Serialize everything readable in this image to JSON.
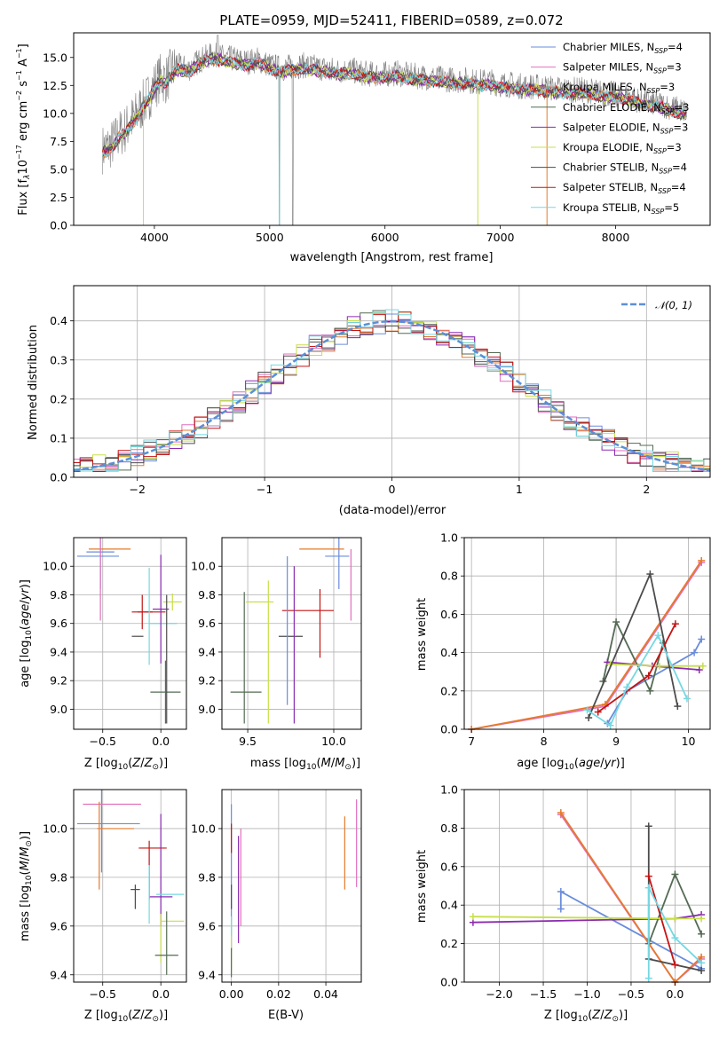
{
  "chart_data": [
    {
      "id": "spectrum",
      "type": "line",
      "title": "PLATE=0959, MJD=52411, FIBERID=0589, z=0.072",
      "xlabel": "wavelength [Angstrom, rest frame]",
      "ylabel": "Flux [f_λ10^-17 erg cm^-2 s^-1 A^-1]",
      "xlim": [
        3300,
        8820
      ],
      "ylim": [
        0,
        17.2
      ],
      "xticks": [
        4000,
        5000,
        6000,
        7000,
        8000
      ],
      "yticks": [
        0.0,
        2.5,
        5.0,
        7.5,
        10.0,
        12.5,
        15.0
      ],
      "grid": false,
      "legend_position": "top-right",
      "data_curve": {
        "x": [
          3550,
          3600,
          3650,
          3700,
          3750,
          3800,
          3850,
          3900,
          3950,
          4000,
          4050,
          4100,
          4150,
          4200,
          4300,
          4400,
          4500,
          4600,
          4700,
          4800,
          4900,
          5000,
          5100,
          5200,
          5300,
          5400,
          5500,
          5600,
          5700,
          5800,
          5900,
          6000,
          6100,
          6200,
          6300,
          6400,
          6500,
          6600,
          6700,
          6800,
          6900,
          7000,
          7100,
          7200,
          7300,
          7400,
          7500,
          7600,
          7700,
          7800,
          7900,
          8000,
          8100,
          8200,
          8300,
          8400,
          8500,
          8600
        ],
        "y": [
          6.8,
          7.0,
          7.5,
          8.2,
          8.6,
          9.3,
          10.0,
          10.8,
          11.5,
          12.5,
          13.2,
          13.0,
          13.8,
          14.2,
          14.0,
          14.8,
          15.2,
          15.0,
          14.8,
          14.6,
          14.8,
          14.3,
          14.0,
          14.2,
          14.3,
          14.1,
          14.0,
          13.8,
          13.9,
          13.6,
          13.5,
          13.5,
          13.6,
          13.4,
          13.3,
          13.2,
          13.1,
          13.0,
          13.0,
          12.8,
          12.9,
          12.6,
          12.6,
          12.4,
          12.4,
          12.3,
          12.2,
          12.1,
          12.1,
          12.0,
          11.8,
          11.7,
          11.6,
          11.2,
          11.0,
          10.8,
          10.5,
          10.2
        ]
      },
      "series": [
        {
          "name": "Chabrier MILES, N_SSP=4",
          "color": "#6a8cdc"
        },
        {
          "name": "Salpeter MILES, N_SSP=3",
          "color": "#e26fbd"
        },
        {
          "name": "Kroupa MILES, N_SSP=3",
          "color": "#e57a2c"
        },
        {
          "name": "Chabrier ELODIE, N_SSP=3",
          "color": "#546b54"
        },
        {
          "name": "Salpeter ELODIE, N_SSP=3",
          "color": "#8a2bb0"
        },
        {
          "name": "Kroupa ELODIE, N_SSP=3",
          "color": "#c8df4a"
        },
        {
          "name": "Chabrier STELIB, N_SSP=4",
          "color": "#4c4c4c"
        },
        {
          "name": "Salpeter STELIB, N_SSP=4",
          "color": "#c41414"
        },
        {
          "name": "Kroupa STELIB, N_SSP=5",
          "color": "#75d8e2"
        }
      ]
    },
    {
      "id": "residuals",
      "type": "line",
      "title": "",
      "xlabel": "(data-model)/error",
      "ylabel": "Normed distribution",
      "xlim": [
        -2.5,
        2.5
      ],
      "ylim": [
        0,
        0.49
      ],
      "xticks": [
        -2,
        -1,
        0,
        1,
        2
      ],
      "yticks": [
        0.0,
        0.1,
        0.2,
        0.3,
        0.4
      ],
      "grid": true,
      "legend_position": "top-right",
      "reference": {
        "name": "𝒩(0,1)",
        "color": "#5b8fd6"
      }
    },
    {
      "id": "age-vs-Z",
      "type": "scatter",
      "xlabel": "Z [log10(Z/Z⊙)]",
      "ylabel": "age  [log10(age/yr)]",
      "xlim": [
        -0.75,
        0.22
      ],
      "ylim": [
        8.86,
        10.2
      ],
      "xticks": [
        -0.5,
        0.0
      ],
      "yticks": [
        9.0,
        9.2,
        9.4,
        9.6,
        9.8,
        10.0
      ],
      "grid": true,
      "points": [
        {
          "x": -0.54,
          "y": 10.07,
          "xerr": 0.18,
          "yerr": 0.0,
          "color": "#6a8cdc"
        },
        {
          "x": -0.52,
          "y": 10.1,
          "xerr": 0.12,
          "yerr": 0.26,
          "color": "#6a8cdc"
        },
        {
          "x": -0.44,
          "y": 10.12,
          "xerr": 0.18,
          "yerr": 0.0,
          "color": "#e57a2c"
        },
        {
          "x": -0.52,
          "y": 10.08,
          "xerr": 0.0,
          "yerr": 0.46,
          "color": "#e26fbd"
        },
        {
          "x": -0.16,
          "y": 9.68,
          "xerr": 0.09,
          "yerr": 0.12,
          "color": "#c41414"
        },
        {
          "x": -0.08,
          "y": 9.68,
          "xerr": 0.12,
          "yerr": 0.0,
          "color": "#c41414"
        },
        {
          "x": -0.2,
          "y": 9.51,
          "xerr": 0.05,
          "yerr": 0.0,
          "color": "#4c4c4c"
        },
        {
          "x": -0.1,
          "y": 9.65,
          "xerr": 0.0,
          "yerr": 0.34,
          "color": "#75d8e2"
        },
        {
          "x": 0.02,
          "y": 9.6,
          "xerr": 0.12,
          "yerr": 0.0,
          "color": "#75d8e2"
        },
        {
          "x": 0.0,
          "y": 9.7,
          "xerr": 0.07,
          "yerr": 0.38,
          "color": "#8a2bb0"
        },
        {
          "x": 0.04,
          "y": 9.12,
          "xerr": 0.13,
          "yerr": 0.22,
          "color": "#546b54"
        },
        {
          "x": 0.1,
          "y": 9.75,
          "xerr": 0.08,
          "yerr": 0.06,
          "color": "#c8df4a"
        },
        {
          "x": 0.05,
          "y": 9.35,
          "xerr": 0.0,
          "yerr": 0.45,
          "color": "#4c4c4c"
        }
      ]
    },
    {
      "id": "age-vs-mass",
      "type": "scatter",
      "xlabel": "mass [log10(M/M⊙)]",
      "ylabel": "",
      "xlim": [
        9.35,
        10.16
      ],
      "ylim": [
        8.86,
        10.2
      ],
      "xticks": [
        9.5,
        10.0
      ],
      "yticks": [
        9.0,
        9.2,
        9.4,
        9.6,
        9.8,
        10.0
      ],
      "grid": true,
      "points": [
        {
          "x": 10.02,
          "y": 10.07,
          "xerr": 0.07,
          "yerr": 0.0,
          "color": "#6a8cdc"
        },
        {
          "x": 10.03,
          "y": 10.1,
          "xerr": 0.0,
          "yerr": 0.26,
          "color": "#6a8cdc"
        },
        {
          "x": 9.93,
          "y": 10.12,
          "xerr": 0.13,
          "yerr": 0.0,
          "color": "#e57a2c"
        },
        {
          "x": 10.1,
          "y": 9.87,
          "xerr": 0.0,
          "yerr": 0.25,
          "color": "#e26fbd"
        },
        {
          "x": 9.85,
          "y": 9.69,
          "xerr": 0.15,
          "yerr": 0.0,
          "color": "#c41414"
        },
        {
          "x": 9.92,
          "y": 9.6,
          "xerr": 0.0,
          "yerr": 0.24,
          "color": "#c41414"
        },
        {
          "x": 9.75,
          "y": 9.51,
          "xerr": 0.07,
          "yerr": 0.0,
          "color": "#4c4c4c"
        },
        {
          "x": 9.73,
          "y": 9.55,
          "xerr": 0.0,
          "yerr": 0.52,
          "color": "#6a8cdc"
        },
        {
          "x": 9.77,
          "y": 9.45,
          "xerr": 0.0,
          "yerr": 0.55,
          "color": "#8a2bb0"
        },
        {
          "x": 9.57,
          "y": 9.75,
          "xerr": 0.08,
          "yerr": 0.0,
          "color": "#c8df4a"
        },
        {
          "x": 9.62,
          "y": 9.4,
          "xerr": 0.0,
          "yerr": 0.5,
          "color": "#c8df4a"
        },
        {
          "x": 9.49,
          "y": 9.12,
          "xerr": 0.09,
          "yerr": 0.0,
          "color": "#546b54"
        },
        {
          "x": 9.48,
          "y": 9.36,
          "xerr": 0.0,
          "yerr": 0.46,
          "color": "#546b54"
        }
      ]
    },
    {
      "id": "weight-vs-age",
      "type": "line",
      "xlabel": "age  [log10(age/yr)]",
      "ylabel": "mass weight",
      "xlim": [
        6.9,
        10.3
      ],
      "ylim": [
        0,
        1.0
      ],
      "xticks": [
        7,
        8,
        9,
        10
      ],
      "yticks": [
        0.0,
        0.2,
        0.4,
        0.6,
        0.8,
        1.0
      ],
      "grid": true,
      "series": [
        {
          "color": "#6a8cdc",
          "x": [
            8.88,
            9.15,
            10.08,
            10.18
          ],
          "y": [
            0.03,
            0.2,
            0.4,
            0.47
          ]
        },
        {
          "color": "#e26fbd",
          "x": [
            7.0,
            8.85,
            10.18
          ],
          "y": [
            0.0,
            0.12,
            0.87
          ]
        },
        {
          "color": "#e57a2c",
          "x": [
            7.0,
            8.85,
            10.18
          ],
          "y": [
            0.0,
            0.13,
            0.88
          ]
        },
        {
          "color": "#546b54",
          "x": [
            8.82,
            9.0,
            9.47,
            9.65
          ],
          "y": [
            0.25,
            0.56,
            0.2,
            0.45
          ]
        },
        {
          "color": "#8a2bb0",
          "x": [
            8.88,
            9.5,
            10.15
          ],
          "y": [
            0.35,
            0.33,
            0.31
          ]
        },
        {
          "color": "#c8df4a",
          "x": [
            8.92,
            9.6,
            10.2
          ],
          "y": [
            0.34,
            0.33,
            0.33
          ]
        },
        {
          "color": "#4c4c4c",
          "x": [
            8.62,
            9.47,
            9.85
          ],
          "y": [
            0.06,
            0.81,
            0.12
          ]
        },
        {
          "color": "#c41414",
          "x": [
            8.75,
            9.45,
            9.82
          ],
          "y": [
            0.09,
            0.28,
            0.55
          ]
        },
        {
          "color": "#75d8e2",
          "x": [
            8.6,
            8.92,
            9.15,
            9.58,
            9.98
          ],
          "y": [
            0.1,
            0.02,
            0.22,
            0.49,
            0.16
          ]
        }
      ]
    },
    {
      "id": "mass-vs-Z",
      "type": "scatter",
      "xlabel": "Z [log10(Z/Z⊙)]",
      "ylabel": "mass [log10(M/M⊙)]",
      "xlim": [
        -0.75,
        0.22
      ],
      "ylim": [
        9.37,
        10.16
      ],
      "xticks": [
        -0.5,
        0.0
      ],
      "yticks": [
        9.4,
        9.6,
        9.8,
        10.0
      ],
      "grid": true,
      "points": [
        {
          "x": -0.45,
          "y": 10.02,
          "xerr": 0.27,
          "yerr": 0.0,
          "color": "#6a8cdc"
        },
        {
          "x": -0.51,
          "y": 10.02,
          "xerr": 0.0,
          "yerr": 0.2,
          "color": "#6a8cdc"
        },
        {
          "x": -0.42,
          "y": 10.1,
          "xerr": 0.25,
          "yerr": 0.0,
          "color": "#e26fbd"
        },
        {
          "x": -0.39,
          "y": 10.0,
          "xerr": 0.16,
          "yerr": 0.0,
          "color": "#e57a2c"
        },
        {
          "x": -0.53,
          "y": 9.93,
          "xerr": 0.0,
          "yerr": 0.18,
          "color": "#e57a2c"
        },
        {
          "x": -0.07,
          "y": 9.92,
          "xerr": 0.12,
          "yerr": 0.0,
          "color": "#c41414"
        },
        {
          "x": -0.1,
          "y": 9.83,
          "xerr": 0.0,
          "yerr": 0.12,
          "color": "#c41414"
        },
        {
          "x": -0.22,
          "y": 9.75,
          "xerr": 0.04,
          "yerr": 0.0,
          "color": "#4c4c4c"
        },
        {
          "x": -0.22,
          "y": 9.72,
          "xerr": 0.0,
          "yerr": 0.05,
          "color": "#4c4c4c"
        },
        {
          "x": 0.0,
          "y": 9.72,
          "xerr": 0.1,
          "yerr": 0.0,
          "color": "#8a2bb0"
        },
        {
          "x": 0.0,
          "y": 9.83,
          "xerr": 0.0,
          "yerr": 0.23,
          "color": "#8a2bb0"
        },
        {
          "x": 0.08,
          "y": 9.73,
          "xerr": 0.12,
          "yerr": 0.0,
          "color": "#75d8e2"
        },
        {
          "x": -0.1,
          "y": 9.73,
          "xerr": 0.0,
          "yerr": 0.12,
          "color": "#75d8e2"
        },
        {
          "x": 0.1,
          "y": 9.62,
          "xerr": 0.1,
          "yerr": 0.0,
          "color": "#c8df4a"
        },
        {
          "x": 0.0,
          "y": 9.55,
          "xerr": 0.0,
          "yerr": 0.1,
          "color": "#c8df4a"
        },
        {
          "x": 0.05,
          "y": 9.48,
          "xerr": 0.1,
          "yerr": 0.0,
          "color": "#546b54"
        },
        {
          "x": 0.05,
          "y": 9.53,
          "xerr": 0.0,
          "yerr": 0.13,
          "color": "#546b54"
        }
      ]
    },
    {
      "id": "mass-vs-EBV",
      "type": "scatter",
      "xlabel": "E(B-V)",
      "ylabel": "",
      "xlim": [
        -0.004,
        0.055
      ],
      "ylim": [
        9.37,
        10.16
      ],
      "xticks": [
        0.0,
        0.02,
        0.04
      ],
      "yticks": [
        9.4,
        9.6,
        9.8,
        10.0
      ],
      "grid": true,
      "points": [
        {
          "x": 0.0,
          "y": 9.8,
          "xerr": 0.0,
          "yerr": 0.3,
          "color": "#6a8cdc"
        },
        {
          "x": 0.0,
          "y": 9.96,
          "xerr": 0.0,
          "yerr": 0.06,
          "color": "#c41414"
        },
        {
          "x": 0.0,
          "y": 9.52,
          "xerr": 0.0,
          "yerr": 0.1,
          "color": "#c8df4a"
        },
        {
          "x": 0.0,
          "y": 9.45,
          "xerr": 0.0,
          "yerr": 0.06,
          "color": "#546b54"
        },
        {
          "x": 0.0,
          "y": 9.6,
          "xerr": 0.0,
          "yerr": 0.04,
          "color": "#75d8e2"
        },
        {
          "x": 0.0,
          "y": 9.72,
          "xerr": 0.0,
          "yerr": 0.05,
          "color": "#4c4c4c"
        },
        {
          "x": 0.003,
          "y": 9.75,
          "xerr": 0.0,
          "yerr": 0.22,
          "color": "#8a2bb0"
        },
        {
          "x": 0.004,
          "y": 9.8,
          "xerr": 0.0,
          "yerr": 0.2,
          "color": "#e26fbd"
        },
        {
          "x": 0.048,
          "y": 9.9,
          "xerr": 0.0,
          "yerr": 0.15,
          "color": "#e57a2c"
        },
        {
          "x": 0.053,
          "y": 9.94,
          "xerr": 0.0,
          "yerr": 0.18,
          "color": "#e26fbd"
        }
      ]
    },
    {
      "id": "weight-vs-Z",
      "type": "line",
      "xlabel": "Z [log10(Z/Z⊙)]",
      "ylabel": "mass weight",
      "xlim": [
        -2.4,
        0.4
      ],
      "ylim": [
        0,
        1.0
      ],
      "xticks": [
        -2.0,
        -1.5,
        -1.0,
        -0.5,
        0.0
      ],
      "yticks": [
        0.0,
        0.2,
        0.4,
        0.6,
        0.8,
        1.0
      ],
      "grid": true,
      "series": [
        {
          "color": "#6a8cdc",
          "x": [
            -1.3,
            -1.3,
            0.3
          ],
          "y": [
            0.38,
            0.47,
            0.07
          ]
        },
        {
          "color": "#e26fbd",
          "x": [
            -1.3,
            0.0,
            0.3
          ],
          "y": [
            0.87,
            0.0,
            0.12
          ]
        },
        {
          "color": "#e57a2c",
          "x": [
            -1.3,
            0.0,
            0.3
          ],
          "y": [
            0.88,
            0.0,
            0.13
          ]
        },
        {
          "color": "#546b54",
          "x": [
            -0.3,
            0.0,
            0.3
          ],
          "y": [
            0.2,
            0.56,
            0.25
          ]
        },
        {
          "color": "#8a2bb0",
          "x": [
            -2.3,
            0.0,
            0.3
          ],
          "y": [
            0.31,
            0.33,
            0.35
          ]
        },
        {
          "color": "#c8df4a",
          "x": [
            -2.3,
            0.0,
            0.3
          ],
          "y": [
            0.34,
            0.33,
            0.33
          ]
        },
        {
          "color": "#4c4c4c",
          "x": [
            -0.3,
            -0.3,
            0.3
          ],
          "y": [
            0.81,
            0.12,
            0.06
          ]
        },
        {
          "color": "#c41414",
          "x": [
            -0.3,
            0.0
          ],
          "y": [
            0.55,
            0.09
          ]
        },
        {
          "color": "#75d8e2",
          "x": [
            -0.3,
            -0.3,
            0.0,
            0.3
          ],
          "y": [
            0.02,
            0.49,
            0.23,
            0.1
          ]
        }
      ]
    }
  ]
}
